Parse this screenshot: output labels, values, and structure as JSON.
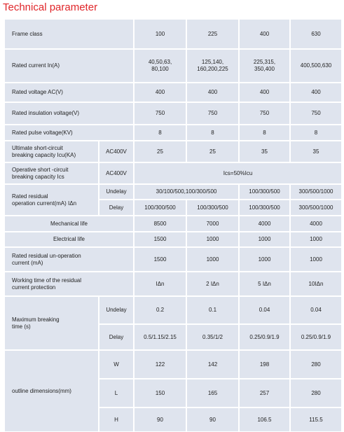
{
  "title": "Technical parameter",
  "table": {
    "rows": [
      [
        "Frame class",
        "100",
        "225",
        "400",
        "630"
      ],
      [
        "Rated current In(A)",
        "40,50,63,\n80,100",
        "125,140,\n160,200,225",
        "225,315,\n350,400",
        "400,500,630"
      ],
      [
        "Rated voltage  AC(V)",
        "400",
        "400",
        "400",
        "400"
      ],
      [
        "Rated insulation voltage(V)",
        "750",
        "750",
        "750",
        "750"
      ],
      [
        "Rated pulse voltage(KV)",
        "8",
        "8",
        "8",
        "8"
      ],
      [
        "Ultimate short-circuit\nbreaking capacity Icu(KA)",
        "AC400V",
        "25",
        "25",
        "35",
        "35"
      ],
      [
        "Operative short -circuit\nbreaking capacity Ics",
        "AC400V",
        "Ics=50%Icu"
      ],
      [
        "Rated residual\noperation current(mA) IΔn",
        "Undelay",
        "30/100/500,100/300/500",
        "100/300/500",
        "300/500/1000"
      ],
      [
        "Delay",
        "100/300/500",
        "100/300/500",
        "100/300/500",
        "300/500/1000"
      ],
      [
        "Mechanical life",
        "8500",
        "7000",
        "4000",
        "4000"
      ],
      [
        "Electrical  life",
        "1500",
        "1000",
        "1000",
        "1000"
      ],
      [
        "Rated residual un-operation\ncurrent (mA)",
        "1500",
        "1000",
        "1000",
        "1000"
      ],
      [
        "Working time of the  residual\ncurrent protection",
        "IΔn",
        "2 IΔn",
        "5 IΔn",
        "10IΔn"
      ],
      [
        "Maximum breaking\ntime (s)",
        "Undelay",
        "0.2",
        "0.1",
        "0.04",
        "0.04"
      ],
      [
        "Delay",
        "0.5/1.15/2.15",
        "0.35/1/2",
        "0.25/0.9/1.9",
        "0.25/0.9/1.9"
      ],
      [
        "outline dimensions(mm)",
        "W",
        "122",
        "142",
        "198",
        "280"
      ],
      [
        "L",
        "150",
        "165",
        "257",
        "280"
      ],
      [
        "H",
        "90",
        "90",
        "106.5",
        "115.5"
      ]
    ]
  }
}
